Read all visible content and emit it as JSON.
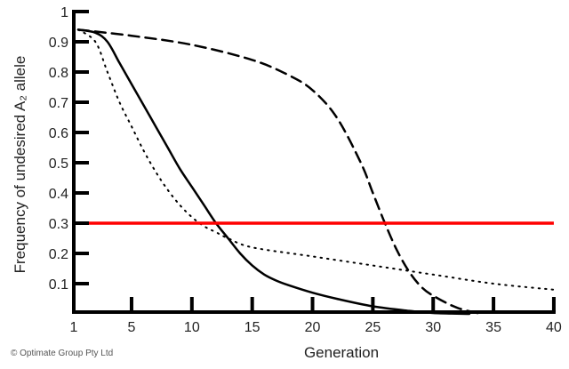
{
  "chart_data": {
    "type": "line",
    "title": "",
    "xlabel": "Generation",
    "ylabel": "Frequency of undesired A₂ allele",
    "xlim": [
      1,
      40
    ],
    "ylim": [
      0,
      1
    ],
    "xticks": [
      1,
      5,
      10,
      15,
      20,
      25,
      30,
      35,
      40
    ],
    "yticks": [
      0.1,
      0.2,
      0.3,
      0.4,
      0.5,
      0.6,
      0.7,
      0.8,
      0.9,
      1
    ],
    "ytick_labels": [
      "0.1",
      "0.2",
      "0.3",
      "0.4",
      "0.5",
      "0.6",
      "0.7",
      "0.8",
      "0.9",
      "1"
    ],
    "grid": false,
    "legend": "none",
    "series": [
      {
        "style": "solid",
        "color": "#000000",
        "x": [
          1,
          2,
          3,
          4,
          5,
          6,
          7,
          8,
          9,
          10,
          11,
          12,
          13,
          14,
          15,
          16,
          17,
          18,
          20,
          22,
          25,
          28,
          30,
          33
        ],
        "y": [
          0.94,
          0.93,
          0.9,
          0.83,
          0.76,
          0.69,
          0.62,
          0.55,
          0.48,
          0.42,
          0.36,
          0.3,
          0.25,
          0.2,
          0.16,
          0.13,
          0.11,
          0.095,
          0.07,
          0.05,
          0.025,
          0.01,
          0.003,
          0
        ]
      },
      {
        "style": "dotted",
        "color": "#000000",
        "x": [
          1,
          2,
          3,
          4,
          5,
          6,
          7,
          8,
          9,
          10,
          11,
          12,
          13,
          15,
          20,
          25,
          30,
          35,
          40
        ],
        "y": [
          0.94,
          0.9,
          0.8,
          0.7,
          0.62,
          0.54,
          0.47,
          0.41,
          0.36,
          0.32,
          0.29,
          0.27,
          0.25,
          0.22,
          0.19,
          0.16,
          0.13,
          0.1,
          0.08
        ]
      },
      {
        "style": "dashed",
        "color": "#000000",
        "x": [
          1,
          5,
          10,
          15,
          18,
          20,
          22,
          24,
          25,
          26,
          27,
          28,
          29,
          30,
          32,
          34
        ],
        "y": [
          0.94,
          0.92,
          0.89,
          0.84,
          0.79,
          0.74,
          0.65,
          0.5,
          0.4,
          0.3,
          0.21,
          0.14,
          0.09,
          0.06,
          0.02,
          0
        ]
      }
    ],
    "threshold": {
      "y": 0.3,
      "x_from": 1,
      "x_to": 40,
      "color": "#ff0000"
    }
  },
  "copyright": "© Optimate Group Pty Ltd"
}
